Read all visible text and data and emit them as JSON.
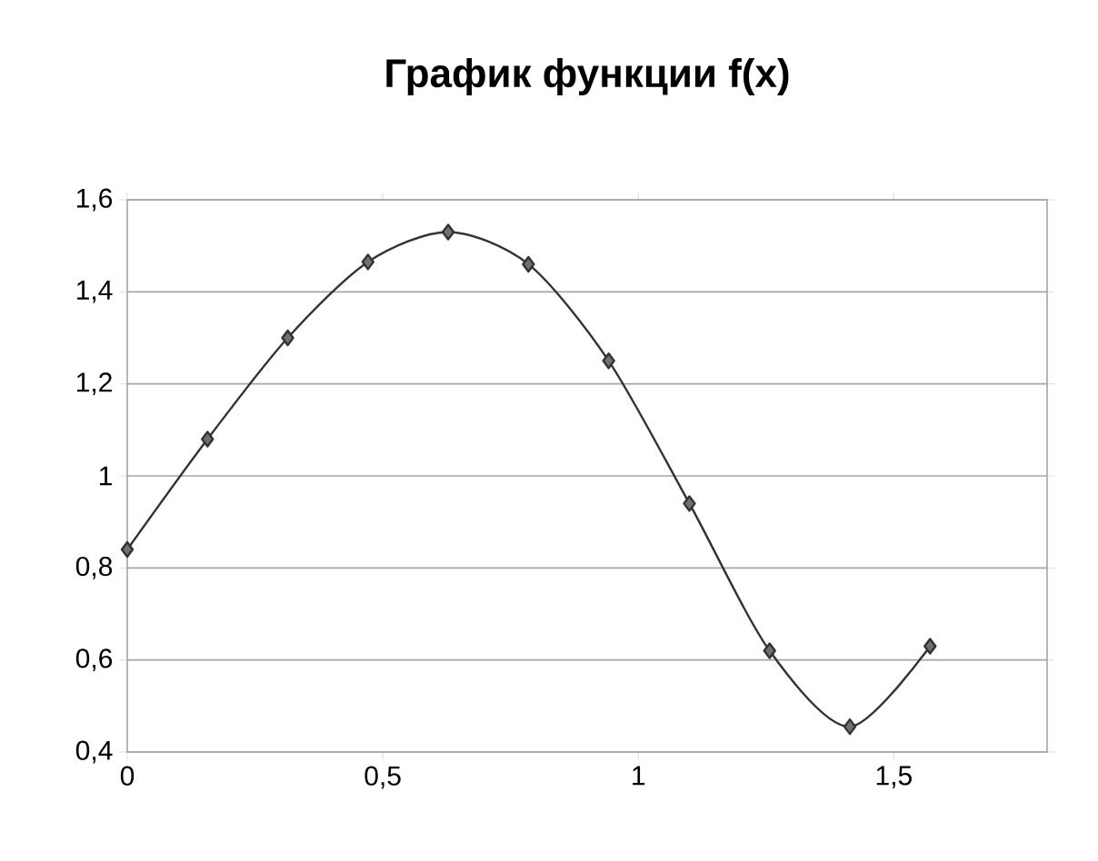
{
  "chart_data": {
    "type": "line",
    "title": "График функции f(x)",
    "x": [
      0,
      0.157,
      0.314,
      0.471,
      0.628,
      0.785,
      0.942,
      1.1,
      1.257,
      1.414,
      1.571
    ],
    "series": [
      {
        "color": "#333333",
        "values": [
          0.84,
          1.08,
          1.3,
          1.465,
          1.53,
          1.46,
          1.25,
          0.94,
          0.62,
          0.455,
          0.63
        ]
      }
    ],
    "xlim": [
      0,
      1.8
    ],
    "xticks": [
      0,
      {
        "value": 0.5,
        "label": "0,5"
      },
      1,
      {
        "value": 1.5,
        "label": "1,5"
      }
    ],
    "ylim": [
      0.4,
      1.6
    ],
    "yticks": [
      {
        "value": 0.4,
        "label": "0,4"
      },
      {
        "value": 0.6,
        "label": "0,6"
      },
      {
        "value": 0.8,
        "label": "0,8"
      },
      1,
      {
        "value": 1.2,
        "label": "1,2"
      },
      {
        "value": 1.4,
        "label": "1,4"
      },
      {
        "value": 1.6,
        "label": "1,6"
      }
    ],
    "grid": "y",
    "marker": "diamond",
    "line_style": "solid"
  }
}
